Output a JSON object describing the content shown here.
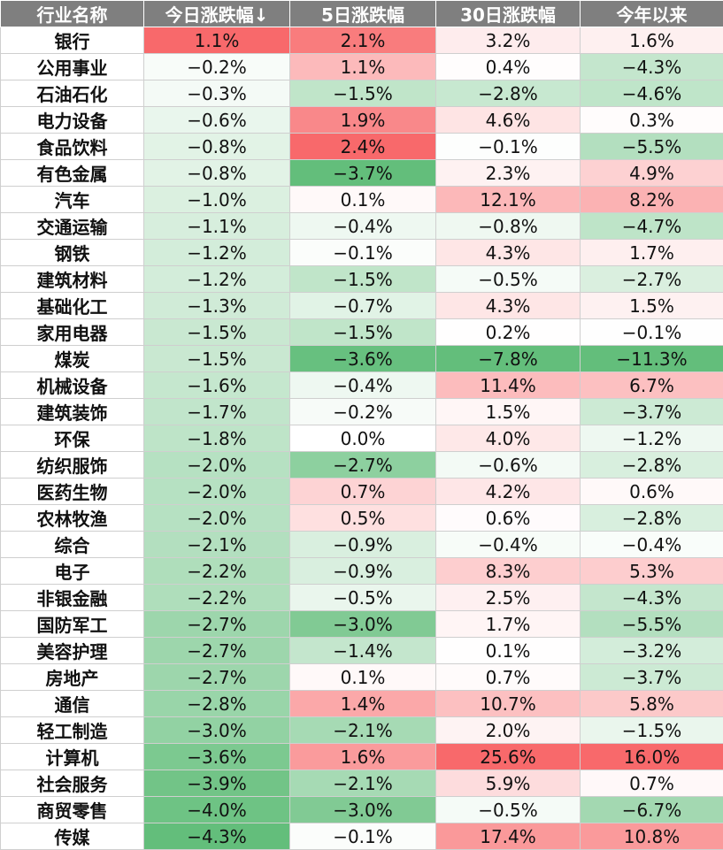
{
  "chart_data": {
    "type": "table",
    "columns": [
      "行业名称",
      "今日涨跌幅↓",
      "5日涨跌幅",
      "30日涨跌幅",
      "今年以来"
    ],
    "rows": [
      {
        "name": "银行",
        "today": 1.1,
        "d5": 2.1,
        "d30": 3.2,
        "ytd": 1.6
      },
      {
        "name": "公用事业",
        "today": -0.2,
        "d5": 1.1,
        "d30": 0.4,
        "ytd": -4.3
      },
      {
        "name": "石油石化",
        "today": -0.3,
        "d5": -1.5,
        "d30": -2.8,
        "ytd": -4.6
      },
      {
        "name": "电力设备",
        "today": -0.6,
        "d5": 1.9,
        "d30": 4.6,
        "ytd": 0.3
      },
      {
        "name": "食品饮料",
        "today": -0.8,
        "d5": 2.4,
        "d30": -0.1,
        "ytd": -5.5
      },
      {
        "name": "有色金属",
        "today": -0.8,
        "d5": -3.7,
        "d30": 2.3,
        "ytd": 4.9
      },
      {
        "name": "汽车",
        "today": -1.0,
        "d5": 0.1,
        "d30": 12.1,
        "ytd": 8.2
      },
      {
        "name": "交通运输",
        "today": -1.1,
        "d5": -0.4,
        "d30": -0.8,
        "ytd": -4.7
      },
      {
        "name": "钢铁",
        "today": -1.2,
        "d5": -0.1,
        "d30": 4.3,
        "ytd": 1.7
      },
      {
        "name": "建筑材料",
        "today": -1.2,
        "d5": -1.5,
        "d30": -0.5,
        "ytd": -2.7
      },
      {
        "name": "基础化工",
        "today": -1.3,
        "d5": -0.7,
        "d30": 4.3,
        "ytd": 1.5
      },
      {
        "name": "家用电器",
        "today": -1.5,
        "d5": -1.5,
        "d30": 0.2,
        "ytd": -0.1
      },
      {
        "name": "煤炭",
        "today": -1.5,
        "d5": -3.6,
        "d30": -7.8,
        "ytd": -11.3
      },
      {
        "name": "机械设备",
        "today": -1.6,
        "d5": -0.4,
        "d30": 11.4,
        "ytd": 6.7
      },
      {
        "name": "建筑装饰",
        "today": -1.7,
        "d5": -0.2,
        "d30": 1.5,
        "ytd": -3.7
      },
      {
        "name": "环保",
        "today": -1.8,
        "d5": 0.0,
        "d30": 4.0,
        "ytd": -1.2
      },
      {
        "name": "纺织服饰",
        "today": -2.0,
        "d5": -2.7,
        "d30": -0.6,
        "ytd": -2.8
      },
      {
        "name": "医药生物",
        "today": -2.0,
        "d5": 0.7,
        "d30": 4.2,
        "ytd": 0.6
      },
      {
        "name": "农林牧渔",
        "today": -2.0,
        "d5": 0.5,
        "d30": 0.6,
        "ytd": -2.8
      },
      {
        "name": "综合",
        "today": -2.1,
        "d5": -0.9,
        "d30": -0.4,
        "ytd": -0.4
      },
      {
        "name": "电子",
        "today": -2.2,
        "d5": -0.9,
        "d30": 8.3,
        "ytd": 5.3
      },
      {
        "name": "非银金融",
        "today": -2.2,
        "d5": -0.5,
        "d30": 2.5,
        "ytd": -4.3
      },
      {
        "name": "国防军工",
        "today": -2.7,
        "d5": -3.0,
        "d30": 1.7,
        "ytd": -5.5
      },
      {
        "name": "美容护理",
        "today": -2.7,
        "d5": -1.4,
        "d30": 0.1,
        "ytd": -3.2
      },
      {
        "name": "房地产",
        "today": -2.7,
        "d5": 0.1,
        "d30": 0.7,
        "ytd": -3.7
      },
      {
        "name": "通信",
        "today": -2.8,
        "d5": 1.4,
        "d30": 10.7,
        "ytd": 5.8
      },
      {
        "name": "轻工制造",
        "today": -3.0,
        "d5": -2.1,
        "d30": 2.0,
        "ytd": -1.5
      },
      {
        "name": "计算机",
        "today": -3.6,
        "d5": 1.6,
        "d30": 25.6,
        "ytd": 16.0
      },
      {
        "name": "社会服务",
        "today": -3.9,
        "d5": -2.1,
        "d30": 5.9,
        "ytd": 0.7
      },
      {
        "name": "商贸零售",
        "today": -4.0,
        "d5": -3.0,
        "d30": -0.5,
        "ytd": -6.7
      },
      {
        "name": "传媒",
        "today": -4.3,
        "d5": -0.1,
        "d30": 17.4,
        "ytd": 10.8
      }
    ],
    "unit": "%",
    "positive_color": "#f8696b",
    "negative_color": "#63be7b",
    "header_background": "#7f7f7f"
  }
}
